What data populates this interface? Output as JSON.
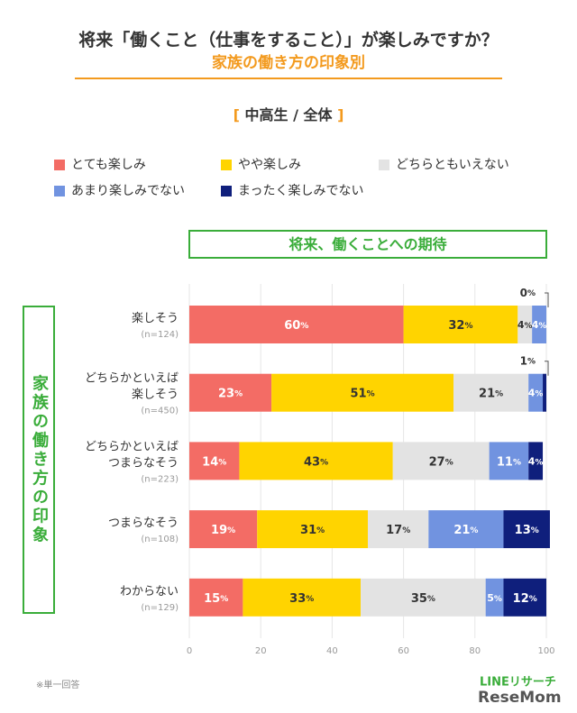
{
  "chart_data": {
    "type": "stacked-bar-horizontal",
    "title": "将来「働くこと（仕事をすること）」が楽しみですか？",
    "subtitle": "家族の働き方の印象別",
    "panel_label": "[ 中高生 / 全体 ]",
    "value_axis_header": "将来、働くことへの期待",
    "category_axis_label": "家族の働き方の印象",
    "categories": [
      "楽しそう",
      "どちらかといえば\n楽しそう",
      "どちらかといえば\nつまらなそう",
      "つまらなそう",
      "わからない"
    ],
    "category_notes": [
      "(n=124)",
      "(n=450)",
      "(n=223)",
      "(n=108)",
      "(n=129)"
    ],
    "series": [
      {
        "name": "とても楽しみ",
        "color": "#f36c65",
        "label_color": "#ffffff",
        "values": [
          60,
          23,
          14,
          19,
          15
        ],
        "value_labels": [
          "60%",
          "23%",
          "14%",
          "19%",
          "15%"
        ]
      },
      {
        "name": "やや楽しみ",
        "color": "#ffd400",
        "label_color": "#333333",
        "values": [
          32,
          51,
          43,
          31,
          33
        ],
        "value_labels": [
          "32%",
          "51%",
          "43%",
          "31%",
          "33%"
        ]
      },
      {
        "name": "どちらともいえない",
        "color": "#e3e3e3",
        "label_color": "#333333",
        "values": [
          4,
          21,
          27,
          17,
          35
        ],
        "value_labels": [
          "4%",
          "21%",
          "27%",
          "17%",
          "35%"
        ]
      },
      {
        "name": "あまり楽しみでない",
        "color": "#7193e0",
        "label_color": "#ffffff",
        "values": [
          4,
          4,
          11,
          21,
          5
        ],
        "value_labels": [
          "4%",
          "4%",
          "11%",
          "21%",
          "5%"
        ]
      },
      {
        "name": "まったく楽しみでない",
        "color": "#0f1f7c",
        "label_color": "#ffffff",
        "values": [
          0,
          1,
          4,
          13,
          12
        ],
        "value_labels": [
          "0%",
          "1%",
          "4%",
          "13%",
          "12%"
        ]
      }
    ],
    "xlim": [
      0,
      100
    ],
    "xticks": [
      0,
      20,
      40,
      60,
      80,
      100
    ],
    "grid": true,
    "footnote": "※単一回答",
    "source": "LINEリサーチ",
    "watermark": "ReseMom"
  }
}
